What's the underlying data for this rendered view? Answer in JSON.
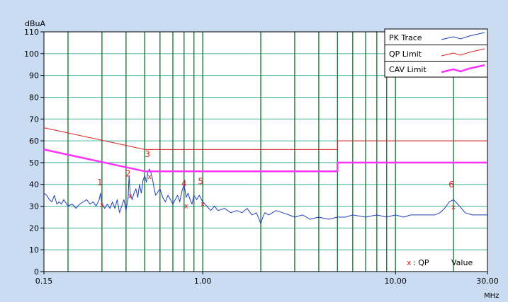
{
  "chart_data": {
    "type": "line",
    "y_unit": "dBuA",
    "x_unit": "MHz",
    "x_scale": "log",
    "xlim": [
      0.15,
      30
    ],
    "ylim": [
      0,
      110
    ],
    "y_ticks": [
      0,
      10,
      20,
      30,
      40,
      50,
      60,
      70,
      80,
      90,
      100,
      110
    ],
    "x_tick_labels": [
      {
        "value": 0.15,
        "label": "0.15"
      },
      {
        "value": 1,
        "label": "1.00"
      },
      {
        "value": 10,
        "label": "10.00"
      },
      {
        "value": 30,
        "label": "30.00"
      }
    ],
    "vertical_gridlines_mhz": [
      0.2,
      0.3,
      0.4,
      0.5,
      0.6,
      0.7,
      0.8,
      0.9,
      1,
      2,
      3,
      4,
      5,
      6,
      7,
      8,
      9,
      10,
      20
    ],
    "horizontal_gridlines": [
      10,
      20,
      30,
      40,
      50,
      60,
      70,
      80,
      90,
      100
    ],
    "grid": true,
    "legend_position": "top-right",
    "series": [
      {
        "name": "PK Trace",
        "color": "#1f3fbf",
        "points": [
          [
            0.15,
            36
          ],
          [
            0.155,
            35
          ],
          [
            0.16,
            33
          ],
          [
            0.165,
            32
          ],
          [
            0.17,
            35
          ],
          [
            0.175,
            31
          ],
          [
            0.18,
            32
          ],
          [
            0.185,
            31
          ],
          [
            0.19,
            33
          ],
          [
            0.2,
            30
          ],
          [
            0.21,
            31
          ],
          [
            0.22,
            29
          ],
          [
            0.23,
            31
          ],
          [
            0.24,
            32
          ],
          [
            0.25,
            33
          ],
          [
            0.26,
            31
          ],
          [
            0.27,
            32
          ],
          [
            0.28,
            30
          ],
          [
            0.29,
            33
          ],
          [
            0.295,
            36
          ],
          [
            0.3,
            31
          ],
          [
            0.31,
            29
          ],
          [
            0.32,
            31
          ],
          [
            0.33,
            29
          ],
          [
            0.34,
            32
          ],
          [
            0.35,
            29
          ],
          [
            0.36,
            33
          ],
          [
            0.37,
            27
          ],
          [
            0.38,
            30
          ],
          [
            0.39,
            33
          ],
          [
            0.4,
            28
          ],
          [
            0.41,
            34
          ],
          [
            0.415,
            44
          ],
          [
            0.42,
            36
          ],
          [
            0.43,
            33
          ],
          [
            0.44,
            36
          ],
          [
            0.45,
            38
          ],
          [
            0.46,
            34
          ],
          [
            0.47,
            40
          ],
          [
            0.48,
            36
          ],
          [
            0.49,
            42
          ],
          [
            0.5,
            44
          ],
          [
            0.51,
            41
          ],
          [
            0.52,
            46
          ],
          [
            0.53,
            47
          ],
          [
            0.54,
            45
          ],
          [
            0.55,
            42
          ],
          [
            0.56,
            38
          ],
          [
            0.57,
            35
          ],
          [
            0.58,
            36
          ],
          [
            0.6,
            38
          ],
          [
            0.62,
            34
          ],
          [
            0.64,
            32
          ],
          [
            0.66,
            35
          ],
          [
            0.68,
            33
          ],
          [
            0.7,
            31
          ],
          [
            0.72,
            33
          ],
          [
            0.74,
            35
          ],
          [
            0.76,
            32
          ],
          [
            0.78,
            37
          ],
          [
            0.8,
            40
          ],
          [
            0.82,
            34
          ],
          [
            0.84,
            36
          ],
          [
            0.86,
            33
          ],
          [
            0.88,
            31
          ],
          [
            0.9,
            35
          ],
          [
            0.93,
            33
          ],
          [
            0.96,
            35
          ],
          [
            1.0,
            32
          ],
          [
            1.05,
            30
          ],
          [
            1.1,
            28
          ],
          [
            1.15,
            30
          ],
          [
            1.2,
            28
          ],
          [
            1.3,
            29
          ],
          [
            1.4,
            27
          ],
          [
            1.5,
            28
          ],
          [
            1.6,
            27
          ],
          [
            1.7,
            29
          ],
          [
            1.8,
            26
          ],
          [
            1.9,
            27
          ],
          [
            2.0,
            22
          ],
          [
            2.05,
            25
          ],
          [
            2.1,
            27
          ],
          [
            2.2,
            26
          ],
          [
            2.4,
            28
          ],
          [
            2.6,
            27
          ],
          [
            2.8,
            26
          ],
          [
            3.0,
            25
          ],
          [
            3.3,
            26
          ],
          [
            3.6,
            24
          ],
          [
            4.0,
            25
          ],
          [
            4.5,
            24
          ],
          [
            5.0,
            25
          ],
          [
            5.5,
            25
          ],
          [
            6.0,
            26
          ],
          [
            7.0,
            25
          ],
          [
            8.0,
            26
          ],
          [
            9.0,
            25
          ],
          [
            10.0,
            26
          ],
          [
            11.0,
            25
          ],
          [
            12.0,
            26
          ],
          [
            14.0,
            26
          ],
          [
            16.0,
            26
          ],
          [
            17.0,
            27
          ],
          [
            18.0,
            29
          ],
          [
            19.0,
            32
          ],
          [
            20.0,
            33
          ],
          [
            21.0,
            31
          ],
          [
            22.0,
            29
          ],
          [
            23.0,
            27
          ],
          [
            25.0,
            26
          ],
          [
            28.0,
            26
          ],
          [
            30.0,
            26
          ]
        ]
      },
      {
        "name": "QP Limit",
        "color": "#e02020",
        "points": [
          [
            0.15,
            66
          ],
          [
            0.5,
            56
          ],
          [
            5.0,
            56
          ],
          [
            5.0,
            60
          ],
          [
            30.0,
            60
          ]
        ]
      },
      {
        "name": "CAV Limit",
        "color": "#ff33ff",
        "points": [
          [
            0.15,
            56
          ],
          [
            0.5,
            46
          ],
          [
            5.0,
            46
          ],
          [
            5.0,
            50
          ],
          [
            30.0,
            50
          ]
        ]
      }
    ],
    "markers": [
      {
        "label": "1",
        "x": 0.3,
        "y": 30.5
      },
      {
        "label": "2",
        "x": 0.42,
        "y": 34.5
      },
      {
        "label": "3",
        "x": 0.53,
        "y": 43.5
      },
      {
        "label": "4",
        "x": 0.82,
        "y": 30
      },
      {
        "label": "5",
        "x": 1.0,
        "y": 31
      },
      {
        "label": "6",
        "x": 20.0,
        "y": 29.5
      }
    ],
    "qp_note": {
      "symbol": "x",
      "text": ": QP",
      "value_label": "Value"
    }
  }
}
